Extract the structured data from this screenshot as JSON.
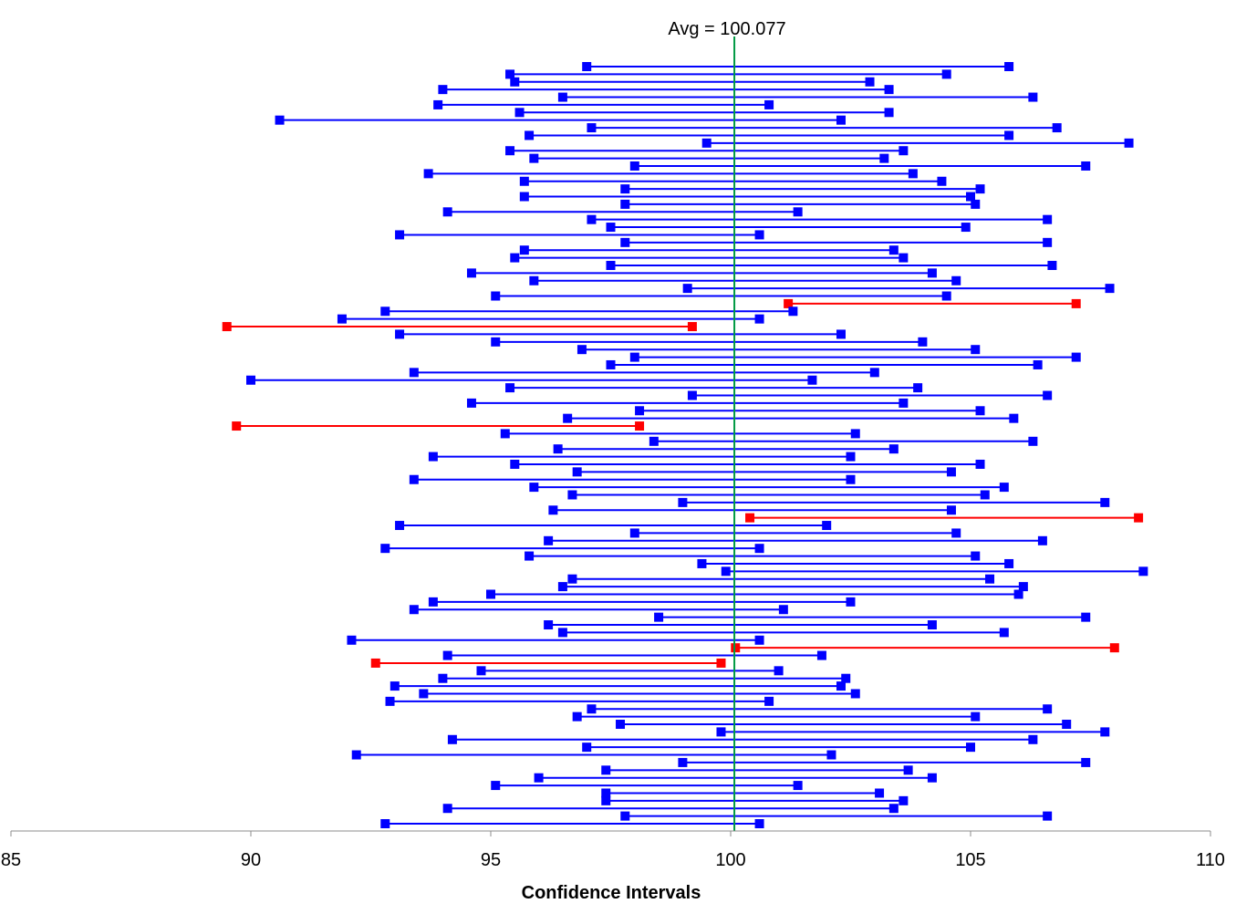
{
  "chart_data": {
    "type": "interval",
    "title": "",
    "xlabel": "Confidence Intervals",
    "ylabel": "",
    "xlim": [
      85,
      110
    ],
    "xticks": [
      "85",
      "90",
      "95",
      "100",
      "105",
      "110"
    ],
    "grid": false,
    "legend": "none",
    "reference_line": {
      "label": "Avg = 100.077",
      "value": 100.077,
      "color": "#009a44"
    },
    "colors": {
      "contains_mean": "#0000ff",
      "misses_mean": "#ff0000",
      "axis": "#8c8c8c"
    },
    "series": [
      {
        "name": "",
        "intervals": [
          {
            "low": 97.0,
            "high": 105.8,
            "contains": true
          },
          {
            "low": 95.4,
            "high": 104.5,
            "contains": true
          },
          {
            "low": 95.5,
            "high": 102.9,
            "contains": true
          },
          {
            "low": 94.0,
            "high": 103.3,
            "contains": true
          },
          {
            "low": 96.5,
            "high": 106.3,
            "contains": true
          },
          {
            "low": 93.9,
            "high": 100.8,
            "contains": true
          },
          {
            "low": 95.6,
            "high": 103.3,
            "contains": true
          },
          {
            "low": 90.6,
            "high": 102.3,
            "contains": true
          },
          {
            "low": 97.1,
            "high": 106.8,
            "contains": true
          },
          {
            "low": 95.8,
            "high": 105.8,
            "contains": true
          },
          {
            "low": 99.5,
            "high": 108.3,
            "contains": true
          },
          {
            "low": 95.4,
            "high": 103.6,
            "contains": true
          },
          {
            "low": 95.9,
            "high": 103.2,
            "contains": true
          },
          {
            "low": 98.0,
            "high": 107.4,
            "contains": true
          },
          {
            "low": 93.7,
            "high": 103.8,
            "contains": true
          },
          {
            "low": 95.7,
            "high": 104.4,
            "contains": true
          },
          {
            "low": 97.8,
            "high": 105.2,
            "contains": true
          },
          {
            "low": 95.7,
            "high": 105.0,
            "contains": true
          },
          {
            "low": 97.8,
            "high": 105.1,
            "contains": true
          },
          {
            "low": 94.1,
            "high": 101.4,
            "contains": true
          },
          {
            "low": 97.1,
            "high": 106.6,
            "contains": true
          },
          {
            "low": 97.5,
            "high": 104.9,
            "contains": true
          },
          {
            "low": 93.1,
            "high": 100.6,
            "contains": true
          },
          {
            "low": 97.8,
            "high": 106.6,
            "contains": true
          },
          {
            "low": 95.7,
            "high": 103.4,
            "contains": true
          },
          {
            "low": 95.5,
            "high": 103.6,
            "contains": true
          },
          {
            "low": 97.5,
            "high": 106.7,
            "contains": true
          },
          {
            "low": 94.6,
            "high": 104.2,
            "contains": true
          },
          {
            "low": 95.9,
            "high": 104.7,
            "contains": true
          },
          {
            "low": 99.1,
            "high": 107.9,
            "contains": true
          },
          {
            "low": 95.1,
            "high": 104.5,
            "contains": true
          },
          {
            "low": 101.2,
            "high": 107.2,
            "contains": false
          },
          {
            "low": 92.8,
            "high": 101.3,
            "contains": true
          },
          {
            "low": 91.9,
            "high": 100.6,
            "contains": true
          },
          {
            "low": 89.5,
            "high": 99.2,
            "contains": false
          },
          {
            "low": 93.1,
            "high": 102.3,
            "contains": true
          },
          {
            "low": 95.1,
            "high": 104.0,
            "contains": true
          },
          {
            "low": 96.9,
            "high": 105.1,
            "contains": true
          },
          {
            "low": 98.0,
            "high": 107.2,
            "contains": true
          },
          {
            "low": 97.5,
            "high": 106.4,
            "contains": true
          },
          {
            "low": 93.4,
            "high": 103.0,
            "contains": true
          },
          {
            "low": 90.0,
            "high": 101.7,
            "contains": true
          },
          {
            "low": 95.4,
            "high": 103.9,
            "contains": true
          },
          {
            "low": 99.2,
            "high": 106.6,
            "contains": true
          },
          {
            "low": 94.6,
            "high": 103.6,
            "contains": true
          },
          {
            "low": 98.1,
            "high": 105.2,
            "contains": true
          },
          {
            "low": 96.6,
            "high": 105.9,
            "contains": true
          },
          {
            "low": 89.7,
            "high": 98.1,
            "contains": false
          },
          {
            "low": 95.3,
            "high": 102.6,
            "contains": true
          },
          {
            "low": 98.4,
            "high": 106.3,
            "contains": true
          },
          {
            "low": 96.4,
            "high": 103.4,
            "contains": true
          },
          {
            "low": 93.8,
            "high": 102.5,
            "contains": true
          },
          {
            "low": 95.5,
            "high": 105.2,
            "contains": true
          },
          {
            "low": 96.8,
            "high": 104.6,
            "contains": true
          },
          {
            "low": 93.4,
            "high": 102.5,
            "contains": true
          },
          {
            "low": 95.9,
            "high": 105.7,
            "contains": true
          },
          {
            "low": 96.7,
            "high": 105.3,
            "contains": true
          },
          {
            "low": 99.0,
            "high": 107.8,
            "contains": true
          },
          {
            "low": 96.3,
            "high": 104.6,
            "contains": true
          },
          {
            "low": 100.4,
            "high": 108.5,
            "contains": false
          },
          {
            "low": 93.1,
            "high": 102.0,
            "contains": true
          },
          {
            "low": 98.0,
            "high": 104.7,
            "contains": true
          },
          {
            "low": 96.2,
            "high": 106.5,
            "contains": true
          },
          {
            "low": 92.8,
            "high": 100.6,
            "contains": true
          },
          {
            "low": 95.8,
            "high": 105.1,
            "contains": true
          },
          {
            "low": 99.4,
            "high": 105.8,
            "contains": true
          },
          {
            "low": 99.9,
            "high": 108.6,
            "contains": true
          },
          {
            "low": 96.7,
            "high": 105.4,
            "contains": true
          },
          {
            "low": 96.5,
            "high": 106.1,
            "contains": true
          },
          {
            "low": 95.0,
            "high": 106.0,
            "contains": true
          },
          {
            "low": 93.8,
            "high": 102.5,
            "contains": true
          },
          {
            "low": 93.4,
            "high": 101.1,
            "contains": true
          },
          {
            "low": 98.5,
            "high": 107.4,
            "contains": true
          },
          {
            "low": 96.2,
            "high": 104.2,
            "contains": true
          },
          {
            "low": 96.5,
            "high": 105.7,
            "contains": true
          },
          {
            "low": 92.1,
            "high": 100.6,
            "contains": true
          },
          {
            "low": 100.1,
            "high": 108.0,
            "contains": false
          },
          {
            "low": 94.1,
            "high": 101.9,
            "contains": true
          },
          {
            "low": 92.6,
            "high": 99.8,
            "contains": false
          },
          {
            "low": 94.8,
            "high": 101.0,
            "contains": true
          },
          {
            "low": 94.0,
            "high": 102.4,
            "contains": true
          },
          {
            "low": 93.0,
            "high": 102.3,
            "contains": true
          },
          {
            "low": 93.6,
            "high": 102.6,
            "contains": true
          },
          {
            "low": 92.9,
            "high": 100.8,
            "contains": true
          },
          {
            "low": 97.1,
            "high": 106.6,
            "contains": true
          },
          {
            "low": 96.8,
            "high": 105.1,
            "contains": true
          },
          {
            "low": 97.7,
            "high": 107.0,
            "contains": true
          },
          {
            "low": 99.8,
            "high": 107.8,
            "contains": true
          },
          {
            "low": 94.2,
            "high": 106.3,
            "contains": true
          },
          {
            "low": 97.0,
            "high": 105.0,
            "contains": true
          },
          {
            "low": 92.2,
            "high": 102.1,
            "contains": true
          },
          {
            "low": 99.0,
            "high": 107.4,
            "contains": true
          },
          {
            "low": 97.4,
            "high": 103.7,
            "contains": true
          },
          {
            "low": 96.0,
            "high": 104.2,
            "contains": true
          },
          {
            "low": 95.1,
            "high": 101.4,
            "contains": true
          },
          {
            "low": 97.4,
            "high": 103.1,
            "contains": true
          },
          {
            "low": 97.4,
            "high": 103.6,
            "contains": true
          },
          {
            "low": 94.1,
            "high": 103.4,
            "contains": true
          },
          {
            "low": 97.8,
            "high": 106.6,
            "contains": true
          },
          {
            "low": 92.8,
            "high": 100.6,
            "contains": true
          }
        ]
      }
    ]
  }
}
